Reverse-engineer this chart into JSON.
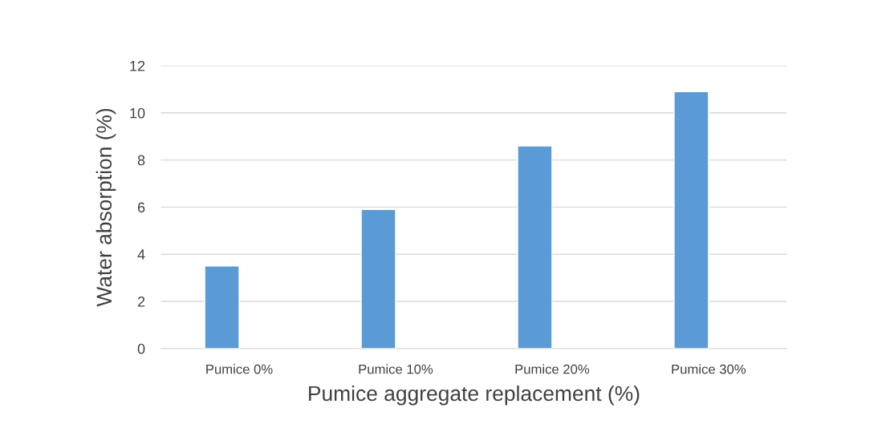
{
  "chart_data": {
    "type": "bar",
    "xlabel": "Pumice aggregate replacement (%)",
    "ylabel": "Water absorption (%)",
    "categories": [
      "Pumice 0%",
      "Pumice 10%",
      "Pumice 20%",
      "Pumice 30%"
    ],
    "series": [
      {
        "color": "#5b9bd5",
        "values": [
          3.5,
          5.9,
          8.6,
          10.9
        ]
      },
      {
        "values": [
          null,
          null,
          null,
          null
        ]
      }
    ],
    "ylim": [
      0,
      12
    ],
    "yticks": [
      0,
      2,
      4,
      6,
      8,
      10,
      12
    ],
    "grid": "y",
    "legend": false
  }
}
